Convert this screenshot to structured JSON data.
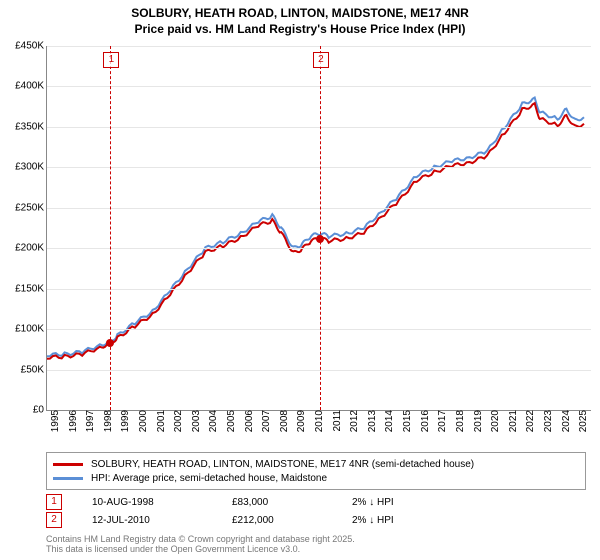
{
  "title_line1": "SOLBURY, HEATH ROAD, LINTON, MAIDSTONE, ME17 4NR",
  "title_line2": "Price paid vs. HM Land Registry's House Price Index (HPI)",
  "chart": {
    "type": "line",
    "x_min": 1995,
    "x_max": 2025.9,
    "y_min": 0,
    "y_max": 450000,
    "ytick_step": 50000,
    "yticks": [
      "£0",
      "£50K",
      "£100K",
      "£150K",
      "£200K",
      "£250K",
      "£300K",
      "£350K",
      "£400K",
      "£450K"
    ],
    "xticks": [
      1995,
      1996,
      1997,
      1998,
      1999,
      2000,
      2001,
      2002,
      2003,
      2004,
      2005,
      2006,
      2007,
      2008,
      2009,
      2010,
      2011,
      2012,
      2013,
      2014,
      2015,
      2016,
      2017,
      2018,
      2019,
      2020,
      2021,
      2022,
      2023,
      2024,
      2025
    ],
    "grid_color": "#e6e6e6",
    "background_color": "#ffffff",
    "series": [
      {
        "name": "hpi",
        "color": "#5b8fd6",
        "width": 2,
        "points": [
          [
            1995,
            68000
          ],
          [
            1996,
            69000
          ],
          [
            1997,
            72000
          ],
          [
            1998,
            80000
          ],
          [
            1998.6,
            85000
          ],
          [
            1999,
            92000
          ],
          [
            2000,
            108000
          ],
          [
            2001,
            122000
          ],
          [
            2002,
            148000
          ],
          [
            2003,
            175000
          ],
          [
            2004,
            200000
          ],
          [
            2005,
            208000
          ],
          [
            2006,
            218000
          ],
          [
            2007,
            233000
          ],
          [
            2007.8,
            240000
          ],
          [
            2008.3,
            225000
          ],
          [
            2009,
            200000
          ],
          [
            2009.5,
            205000
          ],
          [
            2010,
            215000
          ],
          [
            2010.5,
            218000
          ],
          [
            2011,
            215000
          ],
          [
            2012,
            218000
          ],
          [
            2013,
            225000
          ],
          [
            2014,
            245000
          ],
          [
            2015,
            265000
          ],
          [
            2016,
            290000
          ],
          [
            2017,
            300000
          ],
          [
            2018,
            308000
          ],
          [
            2019,
            312000
          ],
          [
            2020,
            320000
          ],
          [
            2021,
            350000
          ],
          [
            2022,
            378000
          ],
          [
            2022.7,
            385000
          ],
          [
            2023,
            368000
          ],
          [
            2024,
            360000
          ],
          [
            2024.5,
            372000
          ],
          [
            2025,
            358000
          ],
          [
            2025.5,
            362000
          ]
        ]
      },
      {
        "name": "property",
        "color": "#cc0000",
        "width": 2,
        "points": [
          [
            1995,
            65000
          ],
          [
            1996,
            66000
          ],
          [
            1997,
            69000
          ],
          [
            1998,
            77000
          ],
          [
            1998.6,
            83000
          ],
          [
            1999,
            89000
          ],
          [
            2000,
            104000
          ],
          [
            2001,
            118000
          ],
          [
            2002,
            143000
          ],
          [
            2003,
            170000
          ],
          [
            2004,
            195000
          ],
          [
            2005,
            203000
          ],
          [
            2006,
            213000
          ],
          [
            2007,
            228000
          ],
          [
            2007.8,
            234000
          ],
          [
            2008.3,
            219000
          ],
          [
            2009,
            194000
          ],
          [
            2009.5,
            199000
          ],
          [
            2010,
            209000
          ],
          [
            2010.5,
            212000
          ],
          [
            2011,
            209000
          ],
          [
            2012,
            212000
          ],
          [
            2013,
            219000
          ],
          [
            2014,
            239000
          ],
          [
            2015,
            259000
          ],
          [
            2016,
            284000
          ],
          [
            2017,
            294000
          ],
          [
            2018,
            302000
          ],
          [
            2019,
            306000
          ],
          [
            2020,
            314000
          ],
          [
            2021,
            343000
          ],
          [
            2022,
            371000
          ],
          [
            2022.7,
            378000
          ],
          [
            2023,
            360000
          ],
          [
            2024,
            352000
          ],
          [
            2024.5,
            364000
          ],
          [
            2025,
            350000
          ],
          [
            2025.5,
            354000
          ]
        ]
      }
    ],
    "markers": [
      {
        "n": "1",
        "x": 1998.6,
        "y": 83000
      },
      {
        "n": "2",
        "x": 2010.5,
        "y": 212000
      }
    ],
    "marker_color": "#cc0000"
  },
  "legend": {
    "items": [
      {
        "color": "#cc0000",
        "label": "SOLBURY, HEATH ROAD, LINTON, MAIDSTONE, ME17 4NR (semi-detached house)"
      },
      {
        "color": "#5b8fd6",
        "label": "HPI: Average price, semi-detached house, Maidstone"
      }
    ]
  },
  "transactions": [
    {
      "n": "1",
      "date": "10-AUG-1998",
      "price": "£83,000",
      "pct": "2% ↓ HPI"
    },
    {
      "n": "2",
      "date": "12-JUL-2010",
      "price": "£212,000",
      "pct": "2% ↓ HPI"
    }
  ],
  "footer_line1": "Contains HM Land Registry data © Crown copyright and database right 2025.",
  "footer_line2": "This data is licensed under the Open Government Licence v3.0."
}
